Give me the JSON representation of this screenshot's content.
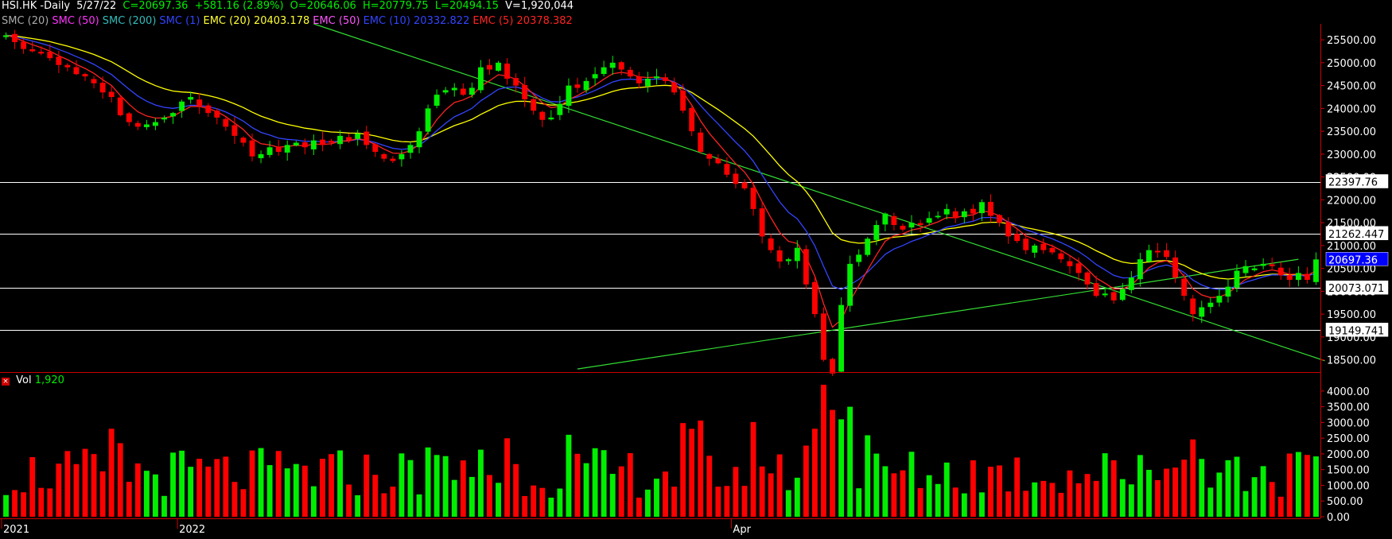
{
  "header": {
    "symbol": "HSI.HK -Daily",
    "date": "5/27/22",
    "close": "C=20697.36",
    "change": "+581.16 (2.89%)",
    "open": "O=20646.06",
    "high": "H=20779.75",
    "low": "L=20494.15",
    "volume": "V=1,920,044",
    "indicators": [
      {
        "label": "SMC (20)",
        "color": "#aaaaaa"
      },
      {
        "label": "SMC (50)",
        "color": "#ff33ff"
      },
      {
        "label": "SMC (200)",
        "color": "#33bbbb"
      },
      {
        "label": "SMC (1)",
        "color": "#3344ff"
      },
      {
        "label": "EMC (20) 20403.178",
        "color": "#ffff33"
      },
      {
        "label": "EMC (50)",
        "color": "#ff55ff"
      },
      {
        "label": "EMC (10) 20332.822",
        "color": "#3344ff"
      },
      {
        "label": "EMC (5) 20378.382",
        "color": "#ff2222"
      }
    ]
  },
  "volume_panel": {
    "close_icon": "×",
    "label": "Vol",
    "value": "1,920"
  },
  "colors": {
    "up": "#00ee00",
    "down": "#ff0000",
    "ema20": "#ffff00",
    "ema10": "#3344ff",
    "ema5": "#ff2222",
    "trendline": "#33dd33",
    "level": "#ffffff",
    "axis": "#cc0000"
  },
  "chart_data": {
    "type": "candlestick",
    "price_axis": {
      "ticks": [
        "25500.00",
        "25000.00",
        "24500.00",
        "24000.00",
        "23500.00",
        "23000.00",
        "22500.00",
        "22000.00",
        "21500.00",
        "21000.00",
        "20500.00",
        "20000.00",
        "19500.00",
        "19000.00",
        "18500.00"
      ],
      "range": [
        18250,
        25850
      ]
    },
    "volume_axis": {
      "ticks": [
        "4000.00",
        "3500.00",
        "3000.00",
        "2500.00",
        "2000.00",
        "1500.00",
        "1000.00",
        "500.00",
        "0.00"
      ],
      "range": [
        0,
        4300
      ]
    },
    "date_labels": [
      {
        "label": "2021",
        "index": 0
      },
      {
        "label": "2022",
        "index": 20
      },
      {
        "label": "Apr",
        "index": 83
      }
    ],
    "levels": [
      {
        "value": 22397.76,
        "label": "22397.76",
        "box": "#000000"
      },
      {
        "value": 21262.447,
        "label": "21262.447",
        "box": "#000000"
      },
      {
        "value": 20073.071,
        "label": "20073.071",
        "box": "#000000"
      },
      {
        "value": 19149.741,
        "label": "19149.741",
        "box": "#000000"
      }
    ],
    "last_price": {
      "value": 20697.36,
      "label": "20697.36",
      "box": "#0000ff"
    },
    "trendlines": [
      {
        "name": "resistance",
        "from": {
          "index": 35,
          "price": 25850
        },
        "to": {
          "index": 150,
          "price": 18480
        }
      },
      {
        "name": "support",
        "from": {
          "index": 65,
          "price": 18300
        },
        "to": {
          "index": 147,
          "price": 20700
        }
      }
    ],
    "closes": [
      25600,
      25450,
      25300,
      25250,
      25200,
      25100,
      24950,
      24900,
      24750,
      24700,
      24550,
      24350,
      24250,
      23850,
      23700,
      23600,
      23650,
      23700,
      23800,
      23900,
      24150,
      24250,
      24050,
      23900,
      23800,
      23600,
      23400,
      23250,
      22950,
      23000,
      23150,
      23050,
      23200,
      23250,
      23150,
      23300,
      23200,
      23250,
      23400,
      23300,
      23450,
      23200,
      23050,
      22900,
      22850,
      23000,
      23200,
      23500,
      24000,
      24300,
      24400,
      24450,
      24300,
      24450,
      24900,
      24850,
      25000,
      24650,
      24500,
      24200,
      23950,
      23750,
      23800,
      24100,
      24500,
      24450,
      24600,
      24750,
      24900,
      25000,
      24850,
      24700,
      24550,
      24650,
      24700,
      24600,
      24350,
      23950,
      23500,
      23050,
      22900,
      22800,
      22550,
      22350,
      22250,
      21800,
      21200,
      20900,
      20650,
      20700,
      20950,
      20150,
      19500,
      18500,
      18200,
      19700,
      20600,
      20800,
      21150,
      21450,
      21700,
      21450,
      21350,
      21500,
      21450,
      21600,
      21650,
      21800,
      21600,
      21750,
      21700,
      21950,
      21650,
      21500,
      21200,
      21100,
      20900,
      21000,
      20900,
      20850,
      20700,
      20550,
      20400,
      20150,
      19900,
      19950,
      19800,
      20050,
      20300,
      20700,
      20900,
      20850,
      20750,
      20300,
      19900,
      19500,
      19650,
      19750,
      19900,
      20100,
      20450,
      20550,
      20500,
      20600,
      20550,
      20350,
      20250,
      20400,
      20250,
      20697
    ]
  }
}
